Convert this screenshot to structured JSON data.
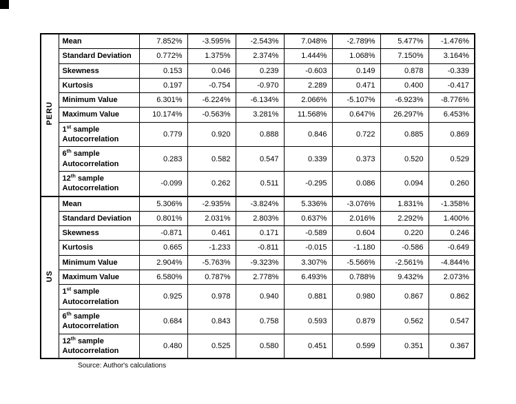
{
  "page": {
    "source_note": "Source: Author's calculations"
  },
  "table": {
    "columns": 7,
    "sections": [
      {
        "group": "PERU",
        "rows": [
          {
            "label_parts": [
              "Mean"
            ],
            "values": [
              "7.852%",
              "-3.595%",
              "-2.543%",
              "7.048%",
              "-2.789%",
              "5.477%",
              "-1.476%"
            ]
          },
          {
            "label_parts": [
              "Standard Deviation"
            ],
            "values": [
              "0.772%",
              "1.375%",
              "2.374%",
              "1.444%",
              "1.068%",
              "7.150%",
              "3.164%"
            ]
          },
          {
            "label_parts": [
              "Skewness"
            ],
            "values": [
              "0.153",
              "0.046",
              "0.239",
              "-0.603",
              "0.149",
              "0.878",
              "-0.339"
            ]
          },
          {
            "label_parts": [
              "Kurtosis"
            ],
            "values": [
              "0.197",
              "-0.754",
              "-0.970",
              "2.289",
              "0.471",
              "0.400",
              "-0.417"
            ]
          },
          {
            "label_parts": [
              "Minimum Value"
            ],
            "values": [
              "6.301%",
              "-6.224%",
              "-6.134%",
              "2.066%",
              "-5.107%",
              "-6.923%",
              "-8.776%"
            ]
          },
          {
            "label_parts": [
              "Maximum Value"
            ],
            "values": [
              "10.174%",
              "-0.563%",
              "3.281%",
              "11.568%",
              "0.647%",
              "26.297%",
              "6.453%"
            ]
          },
          {
            "label_parts": [
              "1",
              "^st",
              " sample Autocorrelation"
            ],
            "values": [
              "0.779",
              "0.920",
              "0.888",
              "0.846",
              "0.722",
              "0.885",
              "0.869"
            ]
          },
          {
            "label_parts": [
              "6",
              "^th",
              " sample Autocorrelation"
            ],
            "values": [
              "0.283",
              "0.582",
              "0.547",
              "0.339",
              "0.373",
              "0.520",
              "0.529"
            ]
          },
          {
            "label_parts": [
              "12",
              "^th",
              " sample Autocorrelation"
            ],
            "values": [
              "-0.099",
              "0.262",
              "0.511",
              "-0.295",
              "0.086",
              "0.094",
              "0.260"
            ]
          }
        ]
      },
      {
        "group": "US",
        "rows": [
          {
            "label_parts": [
              "Mean"
            ],
            "values": [
              "5.306%",
              "-2.935%",
              "-3.824%",
              "5.336%",
              "-3.076%",
              "1.831%",
              "-1.358%"
            ]
          },
          {
            "label_parts": [
              "Standard Deviation"
            ],
            "values": [
              "0.801%",
              "2.031%",
              "2.803%",
              "0.637%",
              "2.016%",
              "2.292%",
              "1.400%"
            ]
          },
          {
            "label_parts": [
              "Skewness"
            ],
            "values": [
              "-0.871",
              "0.461",
              "0.171",
              "-0.589",
              "0.604",
              "0.220",
              "0.246"
            ]
          },
          {
            "label_parts": [
              "Kurtosis"
            ],
            "values": [
              "0.665",
              "-1.233",
              "-0.811",
              "-0.015",
              "-1.180",
              "-0.586",
              "-0.649"
            ]
          },
          {
            "label_parts": [
              "Minimum Value"
            ],
            "values": [
              "2.904%",
              "-5.763%",
              "-9.323%",
              "3.307%",
              "-5.566%",
              "-2.561%",
              "-4.844%"
            ]
          },
          {
            "label_parts": [
              "Maximum Value"
            ],
            "values": [
              "6.580%",
              "0.787%",
              "2.778%",
              "6.493%",
              "0.788%",
              "9.432%",
              "2.073%"
            ]
          },
          {
            "label_parts": [
              "1",
              "^st",
              " sample Autocorrelation"
            ],
            "values": [
              "0.925",
              "0.978",
              "0.940",
              "0.881",
              "0.980",
              "0.867",
              "0.862"
            ]
          },
          {
            "label_parts": [
              "6",
              "^th",
              " sample Autocorrelation"
            ],
            "values": [
              "0.684",
              "0.843",
              "0.758",
              "0.593",
              "0.879",
              "0.562",
              "0.547"
            ]
          },
          {
            "label_parts": [
              "12",
              "^th",
              " sample Autocorrelation"
            ],
            "values": [
              "0.480",
              "0.525",
              "0.580",
              "0.451",
              "0.599",
              "0.351",
              "0.367"
            ]
          }
        ]
      }
    ]
  }
}
